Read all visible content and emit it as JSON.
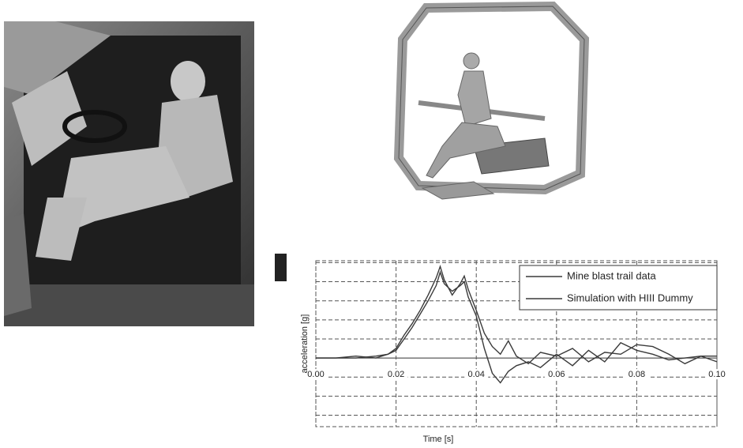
{
  "chart_data": {
    "type": "line",
    "xlabel": "Time [s]",
    "ylabel": "acceleration [g]",
    "x": [
      0,
      0.005,
      0.01,
      0.015,
      0.018,
      0.02,
      0.022,
      0.024,
      0.026,
      0.028,
      0.03,
      0.031,
      0.032,
      0.034,
      0.036,
      0.037,
      0.038,
      0.04,
      0.042,
      0.044,
      0.046,
      0.048,
      0.05,
      0.053,
      0.056,
      0.06,
      0.064,
      0.068,
      0.072,
      0.076,
      0.08,
      0.084,
      0.088,
      0.092,
      0.096,
      0.1
    ],
    "series": [
      {
        "name": "Mine blast trail data",
        "color": "#3a3a3a",
        "values": [
          0,
          0,
          0.1,
          0,
          0.2,
          0.5,
          1.2,
          1.8,
          2.5,
          3.3,
          4.2,
          4.8,
          4.1,
          3.3,
          3.9,
          4.3,
          3.6,
          2.5,
          1.3,
          0.6,
          0.2,
          0.9,
          0.1,
          -0.3,
          0.3,
          0.1,
          0.5,
          -0.2,
          0.3,
          0.2,
          0.7,
          0.6,
          0.2,
          -0.3,
          0.1,
          -0.2
        ]
      },
      {
        "name": "Simulation with HIII Dummy",
        "color": "#3a3a3a",
        "values": [
          0,
          0,
          0,
          0.1,
          0.2,
          0.4,
          1.0,
          1.6,
          2.3,
          3.0,
          3.8,
          4.5,
          3.9,
          3.5,
          3.8,
          4.0,
          3.2,
          2.2,
          0.5,
          -0.8,
          -1.3,
          -0.7,
          -0.4,
          -0.2,
          -0.5,
          0.2,
          -0.4,
          0.4,
          -0.2,
          0.8,
          0.4,
          0.2,
          -0.1,
          0,
          0.1,
          0.1
        ]
      }
    ],
    "xlim": [
      0,
      0.1
    ],
    "xticks": [
      {
        "value": 0,
        "label": "0.00"
      },
      {
        "value": 0.02,
        "label": "0.02"
      },
      {
        "value": 0.04,
        "label": "0.04"
      },
      {
        "value": 0.06,
        "label": "0.06"
      },
      {
        "value": 0.08,
        "label": "0.08"
      },
      {
        "value": 0.1,
        "label": "0.10"
      }
    ],
    "ylim": [
      -3.6,
      5.1
    ],
    "yticks": [
      -3,
      -2,
      -1,
      0,
      1,
      2,
      3,
      4,
      5
    ],
    "grid": true,
    "legend": "upper-right"
  }
}
